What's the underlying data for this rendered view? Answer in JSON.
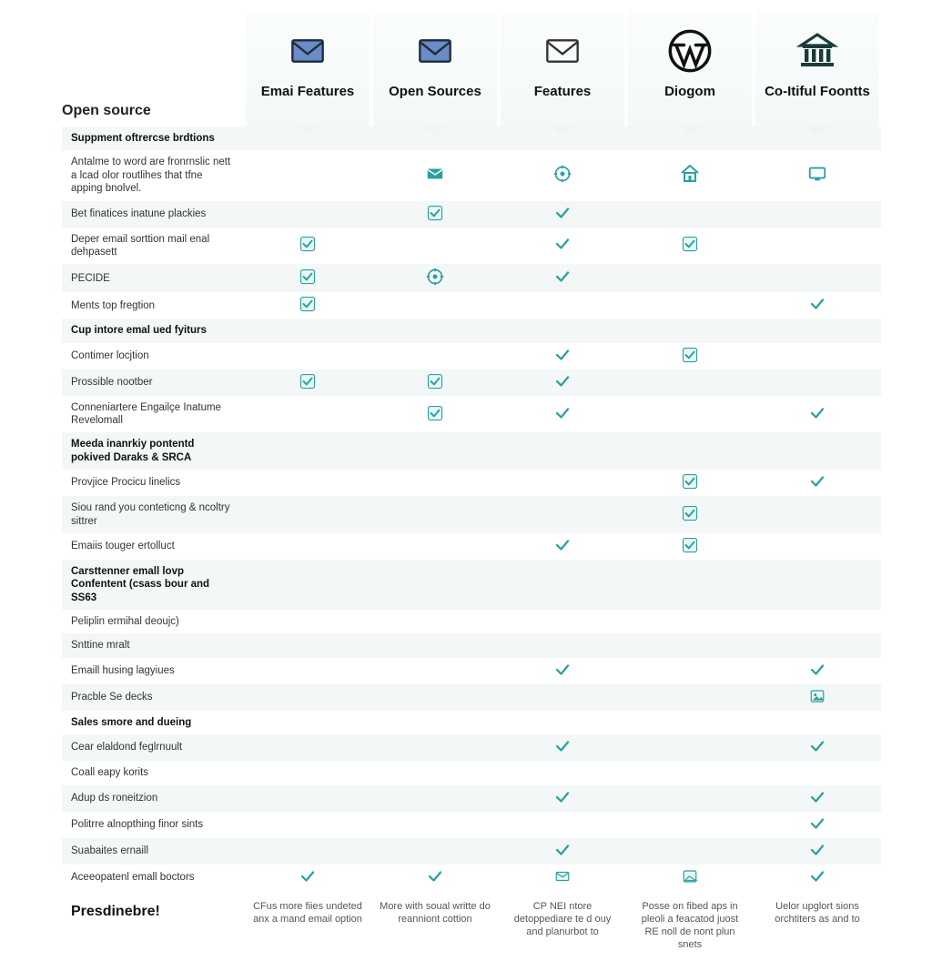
{
  "corner_label": "Open source",
  "footer_title": "Presdinebre!",
  "colors": {
    "check_teal": "#2aa0a0",
    "check_box_stroke": "#2aa0a0",
    "check_box_fill": "#eaf6f6",
    "env_blue_fill": "#6a8cc7",
    "env_blue_stroke": "#1f2a3a",
    "env_line_stroke": "#333",
    "icon_teal": "#2aa0a0",
    "header_text": "#111"
  },
  "columns": [
    {
      "title": "Emai Features",
      "icon": "envelope-filled",
      "footer": "CFus more fiies undeted anx a mand email option"
    },
    {
      "title": "Open Sources",
      "icon": "envelope-filled",
      "footer": "More with soual writte do reanniont cottion"
    },
    {
      "title": "Features",
      "icon": "envelope-outline",
      "footer": "CP NEI ntore detoppediare te d ouy and planurbot to"
    },
    {
      "title": "Diogom",
      "icon": "wordpress",
      "footer": "Posse on fibed aps in pleoli a feacatod juost RE noll de nont plun snets"
    },
    {
      "title": "Co-Itiful Foontts",
      "icon": "bank",
      "footer": "Uelor upglort sions orchtiters as and to"
    }
  ],
  "rows": [
    {
      "label": "Suppment oftrercse brdtions",
      "header": true,
      "cells": [
        "",
        "",
        "",
        "",
        ""
      ]
    },
    {
      "label": "Antalme to word are fronrnslic nett a lcad olor routlihes that tfne apping bnolvel.",
      "cells": [
        "",
        "mail-teal",
        "gear-teal",
        "house-teal",
        "monitor-teal"
      ]
    },
    {
      "label": "Bet finatices inatune plackies",
      "cells": [
        "",
        "check-box",
        "check",
        "",
        ""
      ]
    },
    {
      "label": "Deper email sorttion mail enal dehpasett",
      "cells": [
        "check-box",
        "",
        "check",
        "check-box",
        ""
      ]
    },
    {
      "label": "PECIDE",
      "cells": [
        "check-box",
        "gear-teal",
        "check",
        "",
        ""
      ]
    },
    {
      "label": "Ments top fregtion",
      "cells": [
        "check-box",
        "",
        "",
        "",
        "check"
      ]
    },
    {
      "label": "Cup intore emal ued fyiturs",
      "header": true,
      "cells": [
        "",
        "",
        "",
        "",
        ""
      ]
    },
    {
      "label": "Contimer locjtion",
      "cells": [
        "",
        "",
        "check",
        "check-box",
        ""
      ]
    },
    {
      "label": "Prossible nootber",
      "cells": [
        "check-box",
        "check-box",
        "check",
        "",
        ""
      ]
    },
    {
      "label": "Conneniartere Engailçe Inatume Revelomall",
      "cells": [
        "",
        "check-box",
        "check",
        "",
        "check"
      ]
    },
    {
      "label": "Meeda inanrkiy pontentd pokived Daraks & SRCA",
      "header": true,
      "cells": [
        "",
        "",
        "",
        "",
        ""
      ]
    },
    {
      "label": "Provjice Procicu linelics",
      "cells": [
        "",
        "",
        "",
        "check-box",
        "check"
      ]
    },
    {
      "label": "Siou rand you conteticng & ncoltry sittrer",
      "cells": [
        "",
        "",
        "",
        "check-box",
        ""
      ]
    },
    {
      "label": "Emaiis touger ertolluct",
      "cells": [
        "",
        "",
        "check",
        "check-box",
        ""
      ]
    },
    {
      "label": "Carsttenner emall lovp Confentent (csass bour and SS63",
      "header": true,
      "cells": [
        "",
        "",
        "",
        "",
        ""
      ]
    },
    {
      "label": "Peliplin ermihal deoujc)",
      "cells": [
        "",
        "",
        "",
        "",
        ""
      ]
    },
    {
      "label": "Snttine mralt",
      "cells": [
        "",
        "",
        "",
        "",
        ""
      ]
    },
    {
      "label": "Emaill husing lagyiues",
      "cells": [
        "",
        "",
        "check",
        "",
        "check"
      ]
    },
    {
      "label": "Pracble Se decks",
      "cells": [
        "",
        "",
        "",
        "",
        "image-teal"
      ]
    },
    {
      "label": "Sales smore and dueing",
      "header": true,
      "cells": [
        "",
        "",
        "",
        "",
        ""
      ]
    },
    {
      "label": "Cear elaldond feglrnuult",
      "cells": [
        "",
        "",
        "check",
        "",
        "check"
      ]
    },
    {
      "label": "Coall eapy korits",
      "cells": [
        "",
        "",
        "",
        "",
        ""
      ]
    },
    {
      "label": "Adup ds roneitzion",
      "cells": [
        "",
        "",
        "check",
        "",
        "check"
      ]
    },
    {
      "label": "Politrre alnopthing finor sints",
      "cells": [
        "",
        "",
        "",
        "",
        "check"
      ]
    },
    {
      "label": "Suabaites ernaill",
      "cells": [
        "",
        "",
        "check",
        "",
        "check"
      ]
    },
    {
      "label": "Aceeopatenl emall boctors",
      "cells": [
        "check",
        "check",
        "mail-outline-teal",
        "image-outline-teal",
        "check"
      ]
    }
  ]
}
